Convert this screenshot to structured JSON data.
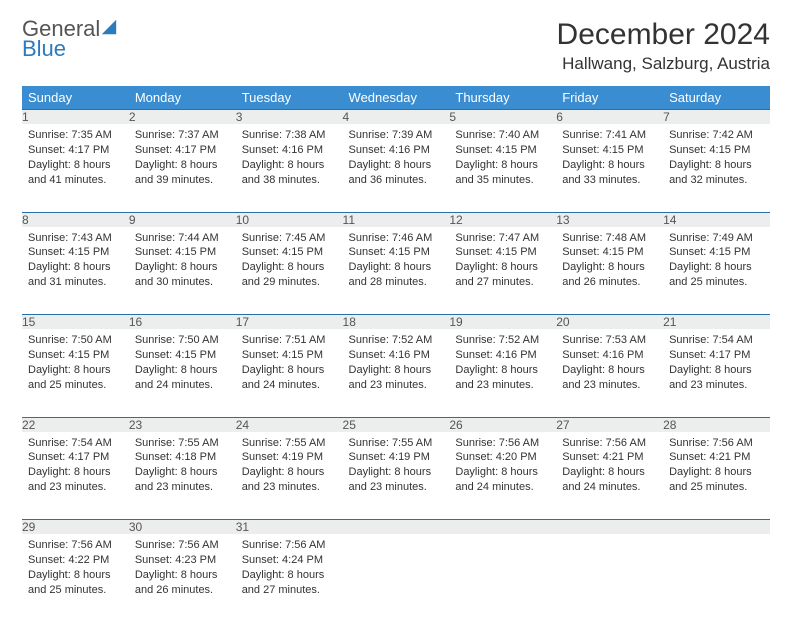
{
  "logo": {
    "word1": "General",
    "word2": "Blue"
  },
  "title": "December 2024",
  "location": "Hallwang, Salzburg, Austria",
  "colors": {
    "header_bg": "#3a8dd0",
    "header_text": "#ffffff",
    "daynum_bg": "#eceded",
    "rule": "#2b6fa8",
    "logo_blue": "#2b7bbd",
    "text": "#333333"
  },
  "dayHeaders": [
    "Sunday",
    "Monday",
    "Tuesday",
    "Wednesday",
    "Thursday",
    "Friday",
    "Saturday"
  ],
  "weeks": [
    [
      {
        "n": "1",
        "sunrise": "7:35 AM",
        "sunset": "4:17 PM",
        "daylight": "8 hours and 41 minutes."
      },
      {
        "n": "2",
        "sunrise": "7:37 AM",
        "sunset": "4:17 PM",
        "daylight": "8 hours and 39 minutes."
      },
      {
        "n": "3",
        "sunrise": "7:38 AM",
        "sunset": "4:16 PM",
        "daylight": "8 hours and 38 minutes."
      },
      {
        "n": "4",
        "sunrise": "7:39 AM",
        "sunset": "4:16 PM",
        "daylight": "8 hours and 36 minutes."
      },
      {
        "n": "5",
        "sunrise": "7:40 AM",
        "sunset": "4:15 PM",
        "daylight": "8 hours and 35 minutes."
      },
      {
        "n": "6",
        "sunrise": "7:41 AM",
        "sunset": "4:15 PM",
        "daylight": "8 hours and 33 minutes."
      },
      {
        "n": "7",
        "sunrise": "7:42 AM",
        "sunset": "4:15 PM",
        "daylight": "8 hours and 32 minutes."
      }
    ],
    [
      {
        "n": "8",
        "sunrise": "7:43 AM",
        "sunset": "4:15 PM",
        "daylight": "8 hours and 31 minutes."
      },
      {
        "n": "9",
        "sunrise": "7:44 AM",
        "sunset": "4:15 PM",
        "daylight": "8 hours and 30 minutes."
      },
      {
        "n": "10",
        "sunrise": "7:45 AM",
        "sunset": "4:15 PM",
        "daylight": "8 hours and 29 minutes."
      },
      {
        "n": "11",
        "sunrise": "7:46 AM",
        "sunset": "4:15 PM",
        "daylight": "8 hours and 28 minutes."
      },
      {
        "n": "12",
        "sunrise": "7:47 AM",
        "sunset": "4:15 PM",
        "daylight": "8 hours and 27 minutes."
      },
      {
        "n": "13",
        "sunrise": "7:48 AM",
        "sunset": "4:15 PM",
        "daylight": "8 hours and 26 minutes."
      },
      {
        "n": "14",
        "sunrise": "7:49 AM",
        "sunset": "4:15 PM",
        "daylight": "8 hours and 25 minutes."
      }
    ],
    [
      {
        "n": "15",
        "sunrise": "7:50 AM",
        "sunset": "4:15 PM",
        "daylight": "8 hours and 25 minutes."
      },
      {
        "n": "16",
        "sunrise": "7:50 AM",
        "sunset": "4:15 PM",
        "daylight": "8 hours and 24 minutes."
      },
      {
        "n": "17",
        "sunrise": "7:51 AM",
        "sunset": "4:15 PM",
        "daylight": "8 hours and 24 minutes."
      },
      {
        "n": "18",
        "sunrise": "7:52 AM",
        "sunset": "4:16 PM",
        "daylight": "8 hours and 23 minutes."
      },
      {
        "n": "19",
        "sunrise": "7:52 AM",
        "sunset": "4:16 PM",
        "daylight": "8 hours and 23 minutes."
      },
      {
        "n": "20",
        "sunrise": "7:53 AM",
        "sunset": "4:16 PM",
        "daylight": "8 hours and 23 minutes."
      },
      {
        "n": "21",
        "sunrise": "7:54 AM",
        "sunset": "4:17 PM",
        "daylight": "8 hours and 23 minutes."
      }
    ],
    [
      {
        "n": "22",
        "sunrise": "7:54 AM",
        "sunset": "4:17 PM",
        "daylight": "8 hours and 23 minutes."
      },
      {
        "n": "23",
        "sunrise": "7:55 AM",
        "sunset": "4:18 PM",
        "daylight": "8 hours and 23 minutes."
      },
      {
        "n": "24",
        "sunrise": "7:55 AM",
        "sunset": "4:19 PM",
        "daylight": "8 hours and 23 minutes."
      },
      {
        "n": "25",
        "sunrise": "7:55 AM",
        "sunset": "4:19 PM",
        "daylight": "8 hours and 23 minutes."
      },
      {
        "n": "26",
        "sunrise": "7:56 AM",
        "sunset": "4:20 PM",
        "daylight": "8 hours and 24 minutes."
      },
      {
        "n": "27",
        "sunrise": "7:56 AM",
        "sunset": "4:21 PM",
        "daylight": "8 hours and 24 minutes."
      },
      {
        "n": "28",
        "sunrise": "7:56 AM",
        "sunset": "4:21 PM",
        "daylight": "8 hours and 25 minutes."
      }
    ],
    [
      {
        "n": "29",
        "sunrise": "7:56 AM",
        "sunset": "4:22 PM",
        "daylight": "8 hours and 25 minutes."
      },
      {
        "n": "30",
        "sunrise": "7:56 AM",
        "sunset": "4:23 PM",
        "daylight": "8 hours and 26 minutes."
      },
      {
        "n": "31",
        "sunrise": "7:56 AM",
        "sunset": "4:24 PM",
        "daylight": "8 hours and 27 minutes."
      },
      null,
      null,
      null,
      null
    ]
  ],
  "labels": {
    "sunrise_prefix": "Sunrise: ",
    "sunset_prefix": "Sunset: ",
    "daylight_prefix": "Daylight: "
  }
}
